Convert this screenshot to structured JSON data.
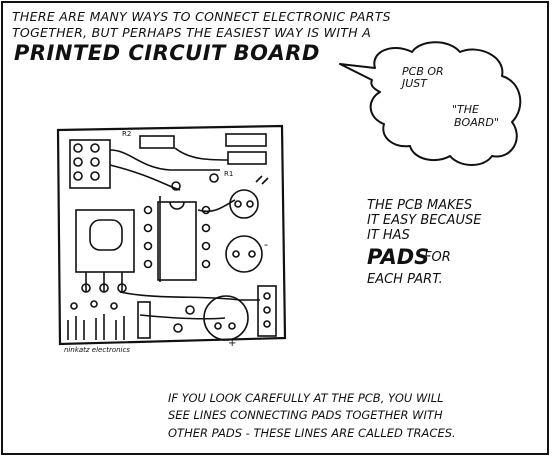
{
  "intro": {
    "line1": "There are many ways to connect electronic parts",
    "line2": "together, but perhaps the easiest way is with a",
    "title": "Printed Circuit Board"
  },
  "bubble": {
    "line1": "PCB or",
    "line2": "just",
    "line3": "\"The",
    "line4": "Board\""
  },
  "right_caption": {
    "line1": "The PCB makes",
    "line2": "it easy because",
    "line3": "it has",
    "pads_word": "Pads",
    "line4_rest": "for",
    "line5": "each part."
  },
  "bottom_caption": {
    "line1": "If you look carefully at the PCB, you will",
    "line2": "see lines connecting pads together with",
    "line3": "other pads - these lines are called traces."
  },
  "board_labels": {
    "r2": "R2",
    "r1": "R1",
    "minus": "-",
    "plus": "+",
    "maker": "ninkatz electronics"
  }
}
